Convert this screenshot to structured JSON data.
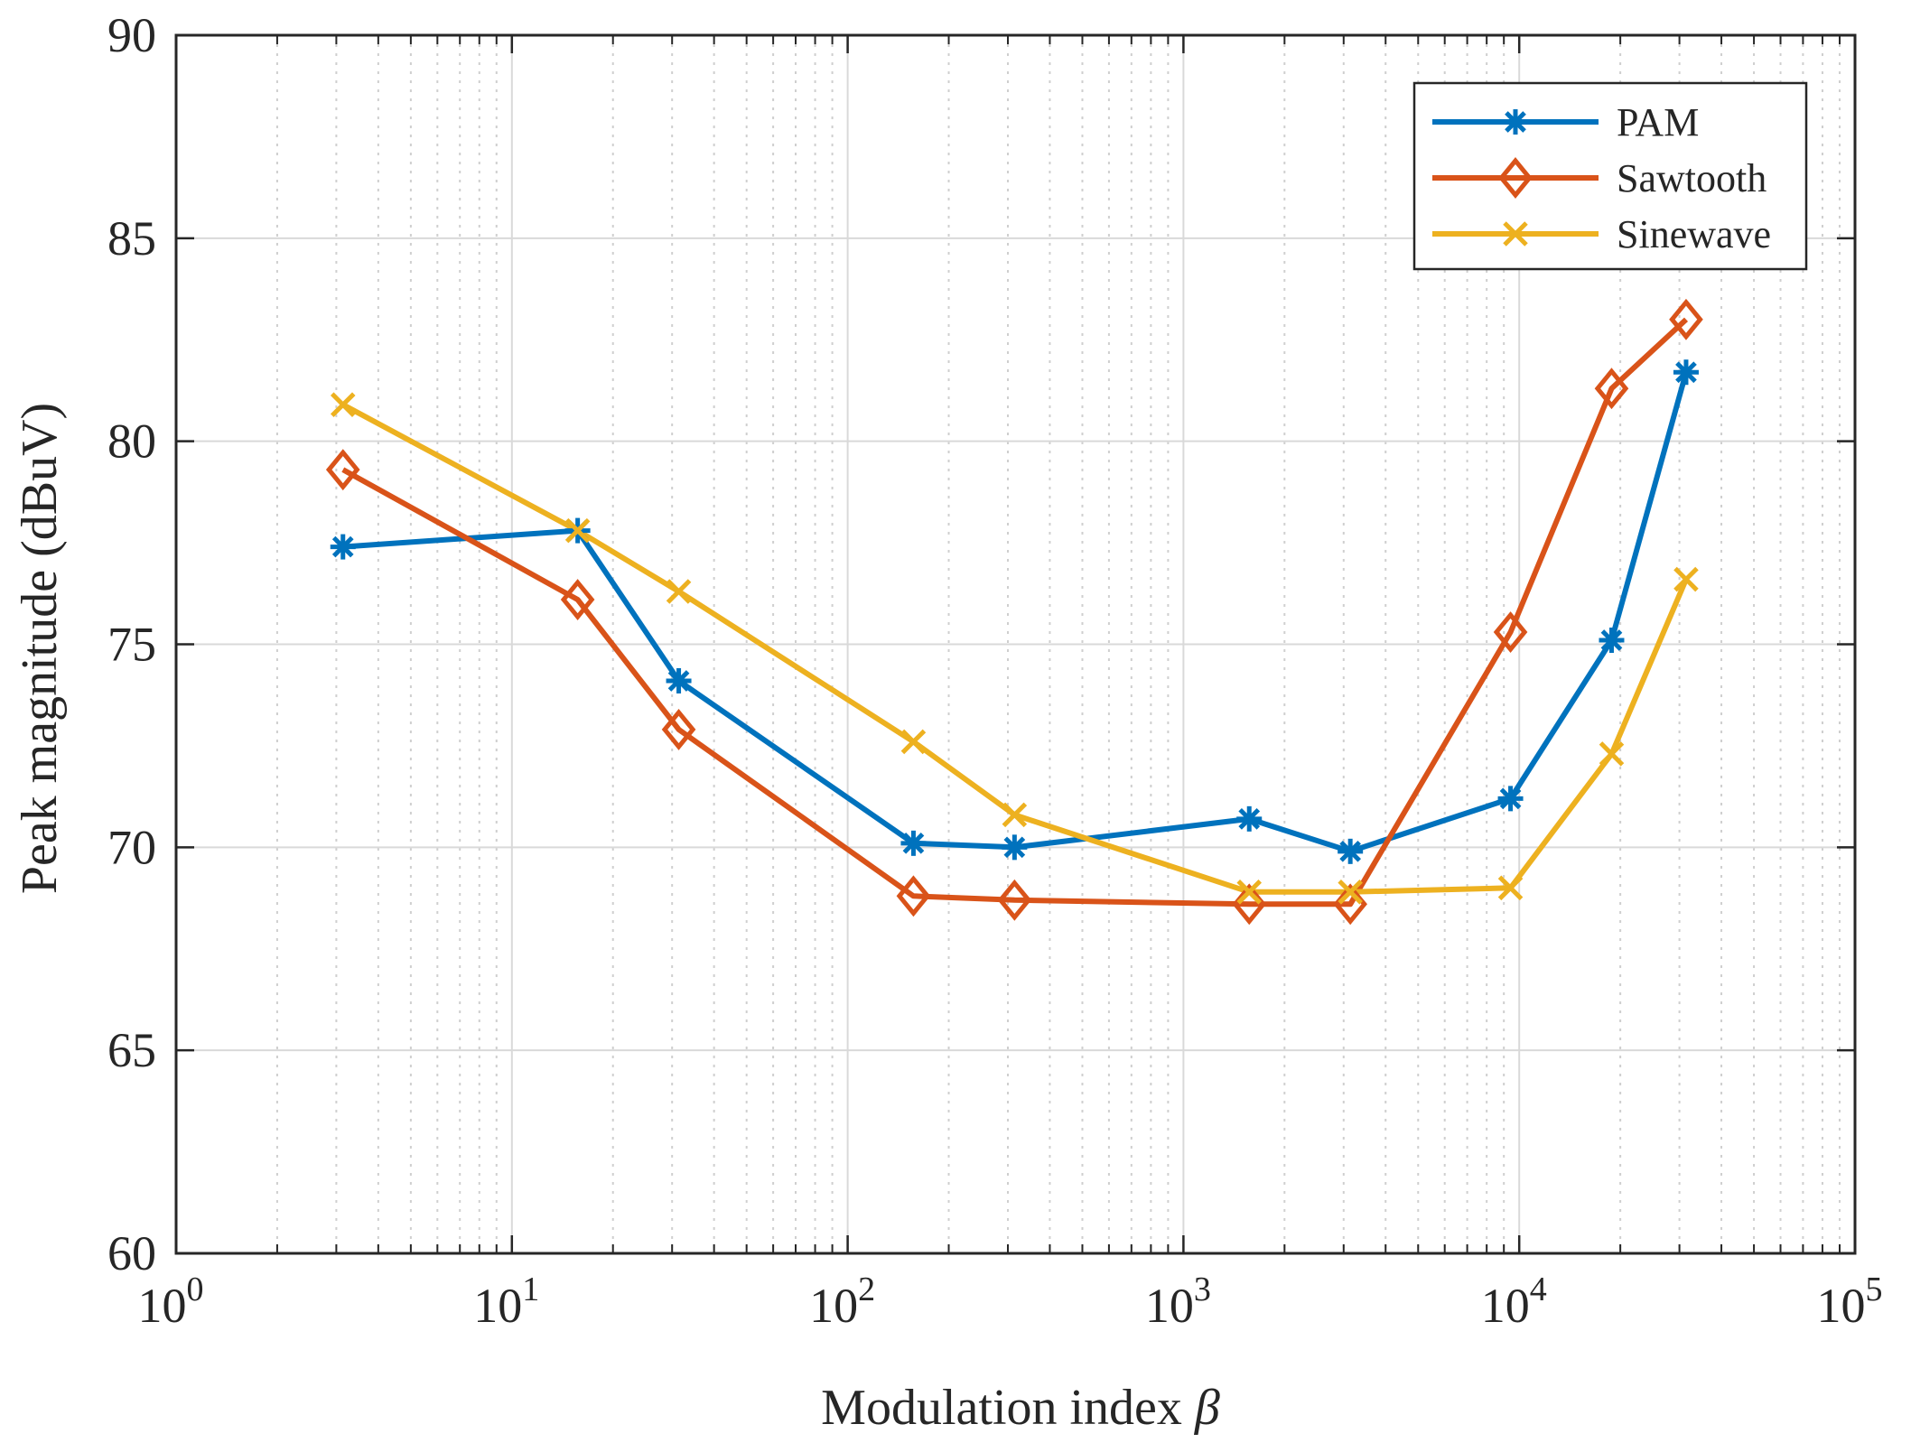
{
  "chart_data": {
    "type": "line",
    "title": "",
    "xlabel": "Modulation index",
    "xlabel_symbol": "β",
    "ylabel": "Peak magnitude (dBuV)",
    "xscale": "log",
    "xlim": [
      1,
      100000
    ],
    "ylim": [
      60,
      90
    ],
    "x_ticks": [
      1,
      10,
      100,
      1000,
      10000,
      100000
    ],
    "x_tick_labels": [
      {
        "base": "10",
        "exp": "0"
      },
      {
        "base": "10",
        "exp": "1"
      },
      {
        "base": "10",
        "exp": "2"
      },
      {
        "base": "10",
        "exp": "3"
      },
      {
        "base": "10",
        "exp": "4"
      },
      {
        "base": "10",
        "exp": "5"
      }
    ],
    "y_ticks": [
      60,
      65,
      70,
      75,
      80,
      85,
      90
    ],
    "y_tick_labels": [
      "60",
      "65",
      "70",
      "75",
      "80",
      "85",
      "90"
    ],
    "grid": true,
    "minor_grid": true,
    "legend_position": "top-right",
    "x": [
      3.14,
      15.7,
      31.4,
      157,
      314,
      1570,
      3140,
      9420,
      18840,
      31400
    ],
    "series": [
      {
        "name": "PAM",
        "color": "#0072BD",
        "marker": "asterisk",
        "values": [
          77.4,
          77.8,
          74.1,
          70.1,
          70.0,
          70.7,
          69.9,
          71.2,
          75.1,
          81.7
        ]
      },
      {
        "name": "Sawtooth",
        "color": "#D95319",
        "marker": "diamond",
        "values": [
          79.3,
          76.1,
          72.9,
          68.8,
          68.7,
          68.6,
          68.6,
          75.3,
          81.3,
          83.0
        ]
      },
      {
        "name": "Sinewave",
        "color": "#EDB120",
        "marker": "x",
        "values": [
          80.9,
          77.8,
          76.3,
          72.6,
          70.8,
          68.9,
          68.9,
          69.0,
          72.3,
          76.6
        ]
      }
    ]
  }
}
